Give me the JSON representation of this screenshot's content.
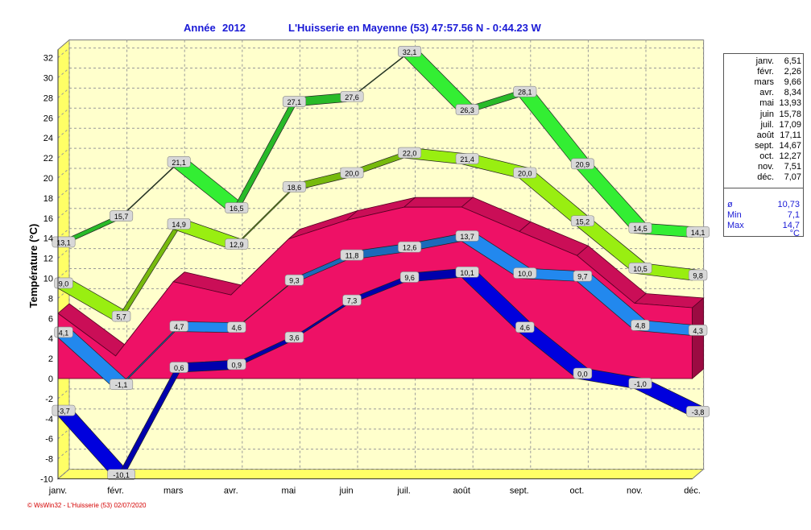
{
  "header": {
    "year_label": "Année",
    "year": "2012",
    "station": "L'Huisserie en Mayenne (53) 47:57.56 N - 0:44.23 W"
  },
  "footer": "© WsWin32 - L'Huisserie (53) 02/07/2020",
  "chart_data": {
    "type": "line",
    "categories": [
      "janv.",
      "févr.",
      "mars",
      "avr.",
      "mai",
      "juin",
      "juil.",
      "août",
      "sept.",
      "oct.",
      "nov.",
      "déc."
    ],
    "ylabel": "Température  (°C)",
    "ylim": [
      -10,
      33
    ],
    "yticks": [
      -10,
      -8,
      -6,
      -4,
      -2,
      0,
      2,
      4,
      6,
      8,
      10,
      12,
      14,
      16,
      18,
      20,
      22,
      24,
      26,
      28,
      30,
      32
    ],
    "grid": true,
    "legend_position": "right",
    "series": [
      {
        "role": "abs_max",
        "color": "#33ee33",
        "values": [
          13.1,
          15.7,
          21.1,
          16.5,
          27.1,
          27.6,
          32.1,
          26.3,
          28.1,
          20.9,
          14.5,
          14.1
        ],
        "labels": [
          "13,1",
          "15,7",
          "21,1",
          "16,5",
          "27,1",
          "27,6",
          "32,1",
          "26,3",
          "28,1",
          "20,9",
          "14,5",
          "14,1"
        ]
      },
      {
        "role": "mean_max",
        "color": "#99ee11",
        "values": [
          9.0,
          5.7,
          14.9,
          12.9,
          18.6,
          20.0,
          22.0,
          21.4,
          20.0,
          15.2,
          10.5,
          9.8
        ],
        "labels": [
          "9,0",
          "5,7",
          "14,9",
          "12,9",
          "18,6",
          "20,0",
          "22,0",
          "21,4",
          "20,0",
          "15,2",
          "10,5",
          "9,8"
        ]
      },
      {
        "role": "mean",
        "color": "#ee1166",
        "values": [
          6.51,
          2.26,
          9.66,
          8.34,
          13.93,
          15.78,
          17.09,
          17.11,
          14.67,
          12.27,
          7.51,
          7.07
        ]
      },
      {
        "role": "mean_min",
        "color": "#2288ee",
        "values": [
          4.1,
          -1.1,
          4.7,
          4.6,
          9.3,
          11.8,
          12.6,
          13.7,
          10.0,
          9.7,
          4.8,
          4.3
        ],
        "labels": [
          "4,1",
          "-1,1",
          "4,7",
          "4,6",
          "9,3",
          "11,8",
          "12,6",
          "13,7",
          "10,0",
          "9,7",
          "4,8",
          "4,3"
        ]
      },
      {
        "role": "low",
        "color": "#0000dd",
        "values": [
          null,
          null,
          0.6,
          0.9,
          3.6,
          7.3,
          9.6,
          10.1,
          4.6,
          0.0,
          -1.0,
          -3.8
        ],
        "labels": [
          "",
          "",
          "0,6",
          "0,9",
          "3,6",
          "7,3",
          "9,6",
          "10,1",
          "4,6",
          "0,0",
          "-1,0",
          "-3,8"
        ]
      },
      {
        "role": "abs_min",
        "color": "#0000dd",
        "values": [
          -3.7,
          -10.1,
          0.6,
          null,
          null,
          null,
          null,
          null,
          null,
          null,
          null,
          null
        ],
        "labels": [
          "-3,7",
          "-10,1",
          "",
          "",
          "",
          "",
          "",
          "",
          "",
          "",
          "",
          ""
        ]
      }
    ],
    "legend": {
      "months": [
        {
          "month": "janv.",
          "value": "6,51"
        },
        {
          "month": "févr.",
          "value": "2,26"
        },
        {
          "month": "mars",
          "value": "9,66"
        },
        {
          "month": "avr.",
          "value": "8,34"
        },
        {
          "month": "mai",
          "value": "13,93"
        },
        {
          "month": "juin",
          "value": "15,78"
        },
        {
          "month": "juil.",
          "value": "17,09"
        },
        {
          "month": "août",
          "value": "17,11"
        },
        {
          "month": "sept.",
          "value": "14,67"
        },
        {
          "month": "oct.",
          "value": "12,27"
        },
        {
          "month": "nov.",
          "value": "7,51"
        },
        {
          "month": "déc.",
          "value": "7,07"
        }
      ],
      "stats": [
        {
          "label": "ø",
          "value": "10,73"
        },
        {
          "label": "Min",
          "value": "7,1"
        },
        {
          "label": "Max",
          "value": "14,7"
        }
      ],
      "unit": "°C"
    }
  }
}
